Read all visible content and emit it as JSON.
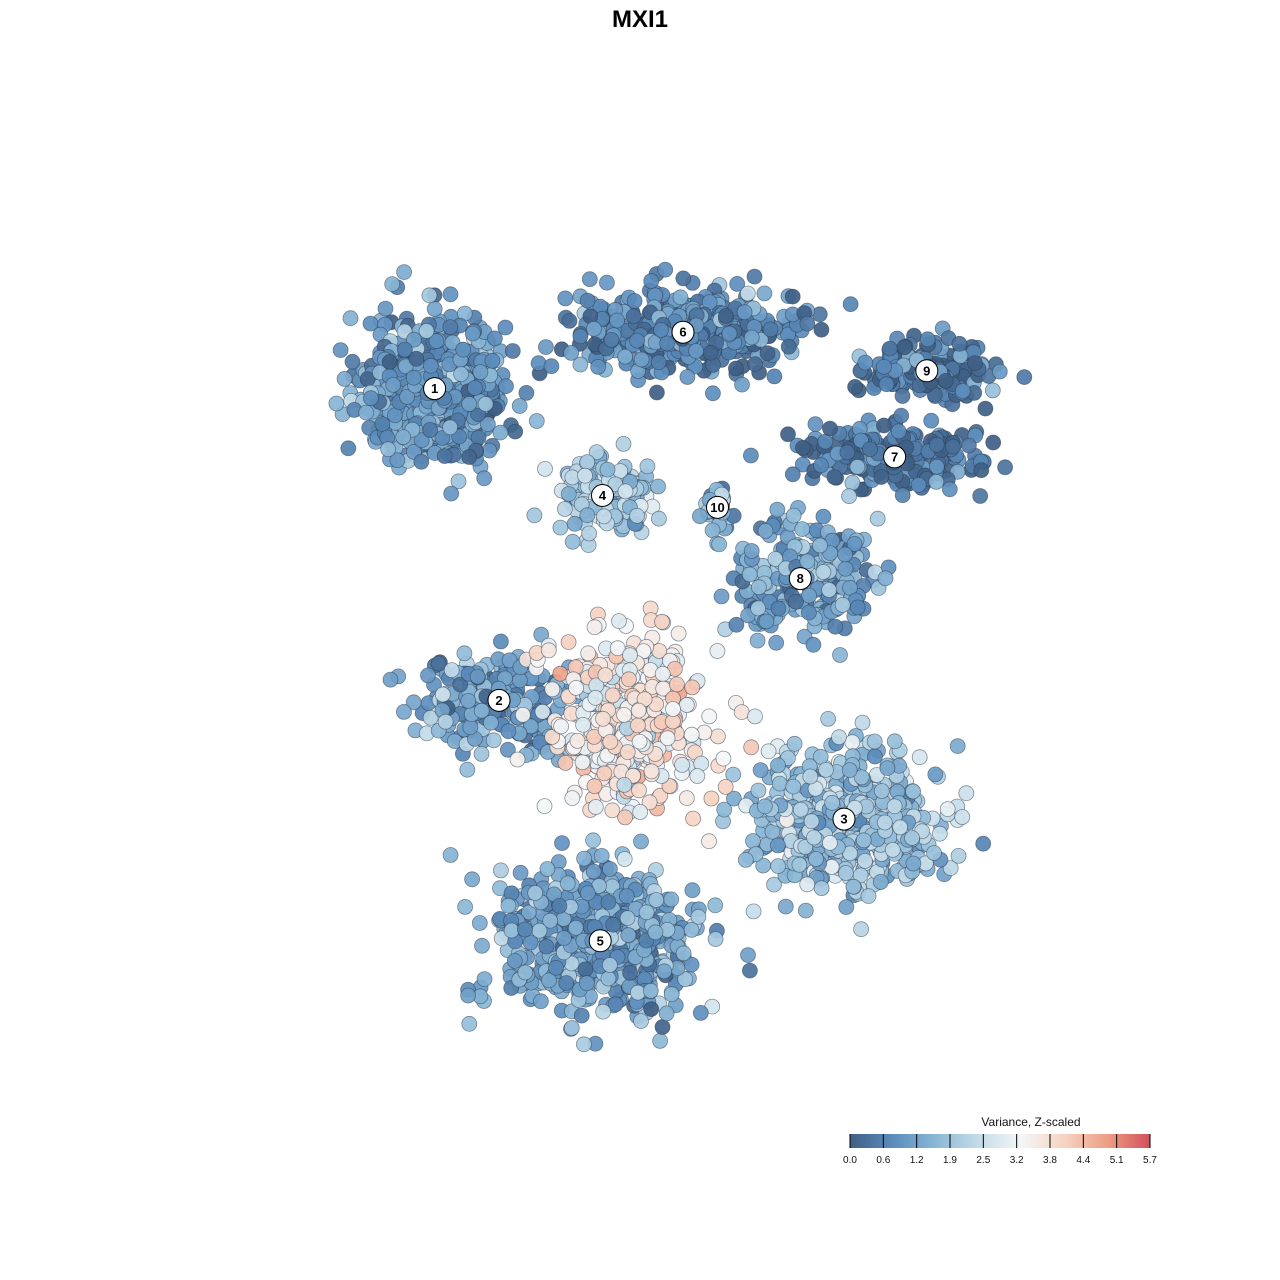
{
  "chart_data": {
    "type": "scatter",
    "title": "MXI1",
    "xlabel": "",
    "ylabel": "",
    "grid": false,
    "axes_visible": false,
    "legend": {
      "title": "Variance, Z-scaled",
      "placement": "bottom-right",
      "ticks": [
        "0.0",
        "0.6",
        "1.2",
        "1.9",
        "2.5",
        "3.2",
        "3.8",
        "4.4",
        "5.1",
        "5.7"
      ],
      "range": [
        0.0,
        5.7
      ],
      "colors": [
        "#3f5f86",
        "#5b8cbc",
        "#8ab7d6",
        "#c4dce9",
        "#f4f6f7",
        "#f6d3c2",
        "#ee9e86",
        "#d2505a"
      ]
    },
    "clusters": [
      {
        "id": "1",
        "label": "1",
        "x": -7.8,
        "y": 6.3,
        "spread_x": 3.6,
        "spread_y": 2.9,
        "mean_value": 1.0,
        "n": 650
      },
      {
        "id": "6",
        "label": "6",
        "x": 3.0,
        "y": 8.2,
        "spread_x": 5.5,
        "spread_y": 1.6,
        "mean_value": 0.8,
        "n": 520
      },
      {
        "id": "4",
        "label": "4",
        "x": -0.5,
        "y": 2.7,
        "spread_x": 2.2,
        "spread_y": 1.6,
        "mean_value": 2.0,
        "n": 200
      },
      {
        "id": "10",
        "label": "10",
        "x": 4.5,
        "y": 2.3,
        "spread_x": 0.6,
        "spread_y": 0.7,
        "mean_value": 1.5,
        "n": 45
      },
      {
        "id": "9",
        "label": "9",
        "x": 13.6,
        "y": 6.9,
        "spread_x": 3.2,
        "spread_y": 1.2,
        "mean_value": 0.4,
        "n": 200
      },
      {
        "id": "7",
        "label": "7",
        "x": 12.2,
        "y": 4.0,
        "spread_x": 4.5,
        "spread_y": 1.2,
        "mean_value": 0.4,
        "n": 260
      },
      {
        "id": "8",
        "label": "8",
        "x": 8.1,
        "y": -0.1,
        "spread_x": 4.0,
        "spread_y": 2.2,
        "mean_value": 1.3,
        "n": 240
      },
      {
        "id": "2",
        "label": "2",
        "x": -5.0,
        "y": -4.2,
        "spread_x": 4.0,
        "spread_y": 2.0,
        "mean_value": 1.2,
        "n": 220
      },
      {
        "id": "3",
        "label": "3",
        "x": 10.0,
        "y": -8.2,
        "spread_x": 4.6,
        "spread_y": 2.6,
        "mean_value": 2.0,
        "n": 600
      },
      {
        "id": "5",
        "label": "5",
        "x": -0.6,
        "y": -12.3,
        "spread_x": 5.2,
        "spread_y": 2.8,
        "mean_value": 1.3,
        "n": 600
      },
      {
        "id": "high",
        "label": "",
        "x": 0.5,
        "y": -5.0,
        "spread_x": 4.2,
        "spread_y": 3.6,
        "mean_value": 3.4,
        "n": 380
      }
    ]
  }
}
